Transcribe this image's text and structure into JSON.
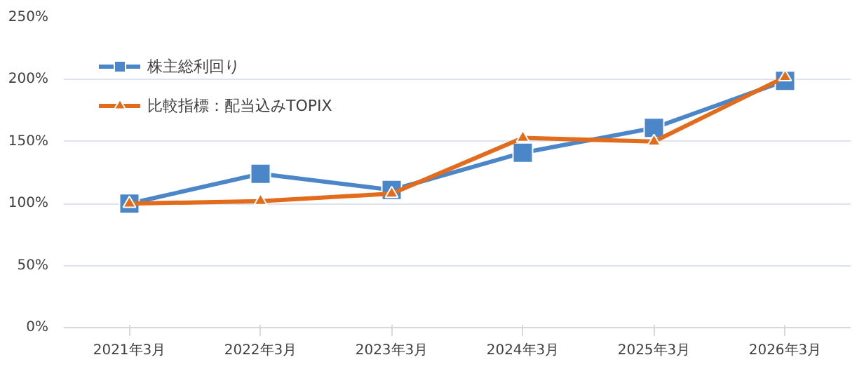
{
  "chart_data": {
    "type": "line",
    "categories": [
      "2021年3月",
      "2022年3月",
      "2023年3月",
      "2024年3月",
      "2025年3月",
      "2026年3月"
    ],
    "series": [
      {
        "name": "株主総利回り",
        "color": "#4a86c8",
        "marker": "square",
        "values": [
          100,
          124,
          111,
          141,
          161,
          199
        ]
      },
      {
        "name": "比較指標：配当込みTOPIX",
        "color": "#e36c1c",
        "marker": "triangle",
        "values": [
          100,
          102,
          108,
          153,
          150,
          202
        ]
      }
    ],
    "ylim": [
      0,
      250
    ],
    "yticks": [
      {
        "value": 0,
        "label": "0%"
      },
      {
        "value": 50,
        "label": "50%"
      },
      {
        "value": 100,
        "label": "100%"
      },
      {
        "value": 150,
        "label": "150%"
      },
      {
        "value": 200,
        "label": "200%"
      },
      {
        "value": 250,
        "label": "250%"
      }
    ],
    "grid": "y",
    "legend": "top left",
    "line_style": "solid"
  }
}
